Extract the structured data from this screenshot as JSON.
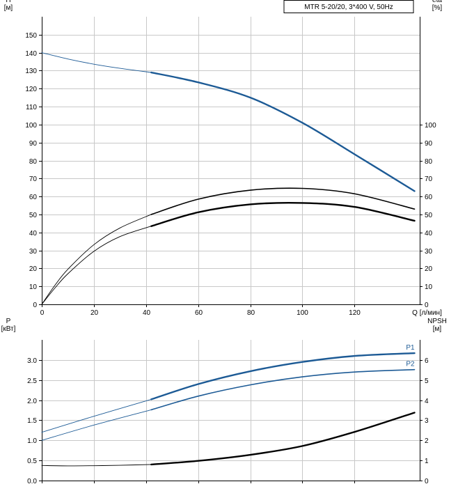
{
  "legend_text": "MTR 5-20/20, 3*400 V, 50Hz",
  "colors": {
    "blue": "#1c5a95",
    "black": "#000000",
    "grid": "#c8c8c8"
  },
  "chart_data": [
    {
      "type": "line",
      "name": "upper",
      "xlabel": "Q [л/мин]",
      "xlim": [
        0,
        145
      ],
      "x_ticks": [
        0,
        20,
        40,
        60,
        80,
        100,
        120
      ],
      "ylabel_left": [
        "H",
        "[м]"
      ],
      "ylim_left": [
        0,
        160
      ],
      "y_ticks_left": [
        0,
        10,
        20,
        30,
        40,
        50,
        60,
        70,
        80,
        90,
        100,
        110,
        120,
        130,
        140,
        150
      ],
      "ylabel_right": [
        "eta",
        "[%]"
      ],
      "ylim_right": [
        0,
        160
      ],
      "y_ticks_right": [
        0,
        10,
        20,
        30,
        40,
        50,
        60,
        70,
        80,
        90,
        100
      ],
      "grid": true,
      "series": [
        {
          "label": "",
          "color": "#1c5a95",
          "axis": "left",
          "x": [
            0,
            10,
            20,
            30,
            42
          ],
          "y": [
            140,
            136.5,
            133.6,
            131.3,
            129
          ],
          "style": "thin"
        },
        {
          "label": "",
          "color": "#1c5a95",
          "axis": "left",
          "x": [
            42,
            60,
            80,
            100,
            120,
            143
          ],
          "y": [
            129,
            123.5,
            115,
            101,
            83.5,
            63
          ],
          "style": "thick"
        },
        {
          "label": "",
          "color": "#000000",
          "axis": "right",
          "x": [
            0,
            5,
            10,
            20,
            30,
            42
          ],
          "y": [
            0,
            10.5,
            19.5,
            33.2,
            42.5,
            50
          ],
          "style": "thin"
        },
        {
          "label": "",
          "color": "#000000",
          "axis": "right",
          "x": [
            42,
            60,
            80,
            100,
            120,
            143
          ],
          "y": [
            50,
            58.5,
            63.5,
            64.5,
            61.5,
            53
          ],
          "style": "medium"
        },
        {
          "label": "",
          "color": "#000000",
          "axis": "right",
          "x": [
            0,
            5,
            10,
            20,
            30,
            42
          ],
          "y": [
            0,
            9,
            17,
            29.5,
            37.7,
            43.5
          ],
          "style": "thin"
        },
        {
          "label": "",
          "color": "#000000",
          "axis": "right",
          "x": [
            42,
            60,
            80,
            100,
            120,
            143
          ],
          "y": [
            43.5,
            51.2,
            55.6,
            56.4,
            54.2,
            46.5
          ],
          "style": "thick"
        }
      ]
    },
    {
      "type": "line",
      "name": "lower",
      "xlim": [
        0,
        145
      ],
      "x_ticks": [
        0,
        20,
        40,
        60,
        80,
        100,
        120
      ],
      "ylabel_left": [
        "P",
        "[кВт]"
      ],
      "ylim_left": [
        0,
        3.5
      ],
      "y_ticks_left": [
        "0.0",
        "0.5",
        "1.0",
        "1.5",
        "2.0",
        "2.5",
        "3.0"
      ],
      "ylabel_right": [
        "NPSH",
        "[м]"
      ],
      "ylim_right": [
        0,
        7
      ],
      "y_ticks_right": [
        0,
        1,
        2,
        3,
        4,
        5,
        6
      ],
      "grid": true,
      "series": [
        {
          "label": "",
          "color": "#1c5a95",
          "axis": "left",
          "x": [
            0,
            20,
            42
          ],
          "y": [
            1.2,
            1.6,
            2.02
          ],
          "style": "thin"
        },
        {
          "label": "P1",
          "color": "#1c5a95",
          "axis": "left",
          "x": [
            42,
            60,
            80,
            100,
            120,
            143
          ],
          "y": [
            2.02,
            2.4,
            2.72,
            2.95,
            3.1,
            3.17
          ],
          "style": "thick"
        },
        {
          "label": "",
          "color": "#1c5a95",
          "axis": "left",
          "x": [
            0,
            20,
            42
          ],
          "y": [
            1.0,
            1.38,
            1.76
          ],
          "style": "thin"
        },
        {
          "label": "P2",
          "color": "#1c5a95",
          "axis": "left",
          "x": [
            42,
            60,
            80,
            100,
            120,
            143
          ],
          "y": [
            1.76,
            2.1,
            2.38,
            2.58,
            2.7,
            2.76
          ],
          "style": "medium"
        },
        {
          "label": "",
          "color": "#000000",
          "axis": "right",
          "x": [
            0,
            10,
            20,
            30,
            42
          ],
          "y": [
            0.75,
            0.73,
            0.74,
            0.76,
            0.8
          ],
          "style": "thin"
        },
        {
          "label": "",
          "color": "#000000",
          "axis": "right",
          "x": [
            42,
            60,
            80,
            100,
            120,
            143
          ],
          "y": [
            0.8,
            0.98,
            1.28,
            1.72,
            2.42,
            3.38
          ],
          "style": "thick"
        }
      ]
    }
  ]
}
